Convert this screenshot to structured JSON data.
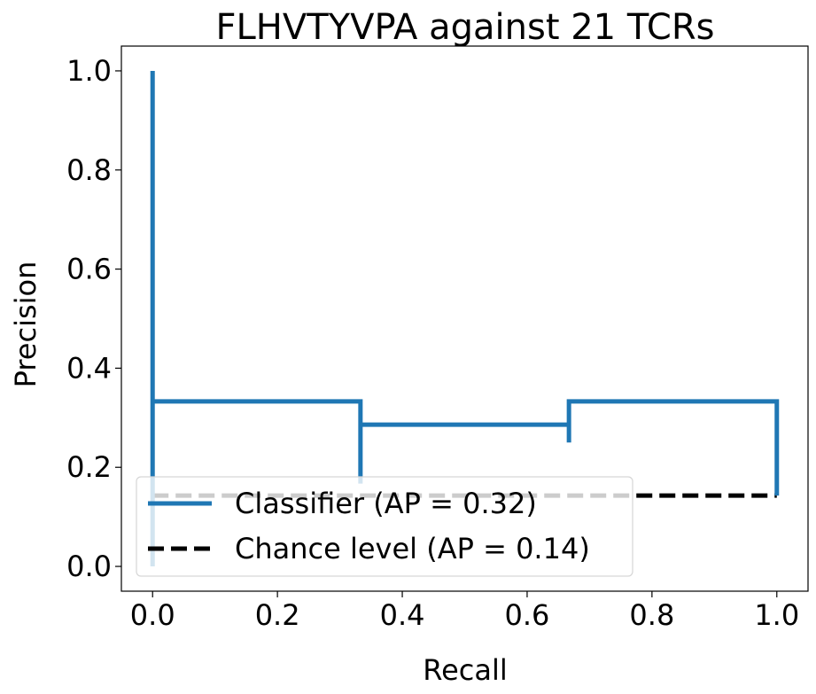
{
  "chart_data": {
    "type": "line",
    "title": "FLHVTYVPA against 21 TCRs",
    "xlabel": "Recall",
    "ylabel": "Precision",
    "xlim": [
      -0.05,
      1.05
    ],
    "ylim": [
      -0.05,
      1.05
    ],
    "xticks": [
      0.0,
      0.2,
      0.4,
      0.6,
      0.8,
      1.0
    ],
    "xtick_labels": [
      "0.0",
      "0.2",
      "0.4",
      "0.6",
      "0.8",
      "1.0"
    ],
    "yticks": [
      0.0,
      0.2,
      0.4,
      0.6,
      0.8,
      1.0
    ],
    "ytick_labels": [
      "0.0",
      "0.2",
      "0.4",
      "0.6",
      "0.8",
      "1.0"
    ],
    "grid": false,
    "legend_position": "lower-left",
    "series": [
      {
        "name": "Classifier (AP = 0.32)",
        "color": "#1f77b4",
        "style": "step",
        "x": [
          0.0,
          0.0,
          0.0,
          0.0,
          0.333,
          0.333,
          0.333,
          0.667,
          0.667,
          0.667,
          1.0,
          1.0
        ],
        "y": [
          0.0,
          1.0,
          0.167,
          0.333,
          0.333,
          0.167,
          0.286,
          0.286,
          0.25,
          0.333,
          0.333,
          0.143
        ]
      },
      {
        "name": "Chance level (AP = 0.14)",
        "color": "#000000",
        "style": "dashed",
        "x": [
          0.0,
          1.0
        ],
        "y": [
          0.143,
          0.143
        ]
      }
    ]
  }
}
